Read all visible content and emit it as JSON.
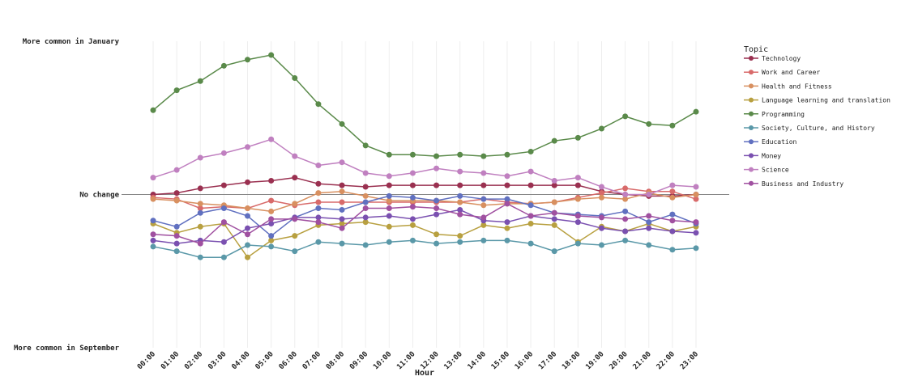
{
  "chart_data": {
    "type": "line",
    "x_label": "Hour",
    "legend_title": "Topic",
    "categories": [
      "00:00",
      "01:00",
      "02:00",
      "03:00",
      "04:00",
      "05:00",
      "06:00",
      "07:00",
      "08:00",
      "09:00",
      "10:00",
      "11:00",
      "12:00",
      "13:00",
      "14:00",
      "15:00",
      "16:00",
      "17:00",
      "18:00",
      "19:00",
      "20:00",
      "21:00",
      "22:00",
      "23:00"
    ],
    "ylim": [
      -1,
      1
    ],
    "yticks": [
      {
        "value": 1,
        "label": "More common in January"
      },
      {
        "value": 0,
        "label": "No change"
      },
      {
        "value": -1,
        "label": "More common in September"
      }
    ],
    "grid": true,
    "series": [
      {
        "name": "Technology",
        "color": "#9a3050",
        "values": [
          0,
          0.01,
          0.04,
          0.06,
          0.08,
          0.09,
          0.11,
          0.07,
          0.06,
          0.05,
          0.06,
          0.06,
          0.06,
          0.06,
          0.06,
          0.06,
          0.06,
          0.06,
          0.06,
          0.02,
          0,
          -0.01,
          -0.01,
          0
        ]
      },
      {
        "name": "Work and Career",
        "color": "#d86a6a",
        "values": [
          -0.02,
          -0.03,
          -0.09,
          -0.08,
          -0.09,
          -0.04,
          -0.07,
          -0.05,
          -0.05,
          -0.05,
          -0.05,
          -0.05,
          -0.05,
          -0.05,
          -0.03,
          -0.05,
          -0.06,
          -0.05,
          -0.02,
          0.01,
          0.04,
          0.02,
          0.02,
          -0.03
        ]
      },
      {
        "name": "Health and Fitness",
        "color": "#d89060",
        "values": [
          -0.03,
          -0.04,
          -0.06,
          -0.07,
          -0.09,
          -0.11,
          -0.06,
          0.01,
          0.02,
          -0.01,
          -0.04,
          -0.04,
          -0.04,
          -0.05,
          -0.07,
          -0.06,
          -0.06,
          -0.05,
          -0.03,
          -0.02,
          -0.03,
          0.01,
          -0.02,
          0
        ]
      },
      {
        "name": "Language learning and translation",
        "color": "#b8a040",
        "values": [
          -0.19,
          -0.25,
          -0.21,
          -0.19,
          -0.41,
          -0.3,
          -0.27,
          -0.2,
          -0.19,
          -0.18,
          -0.21,
          -0.2,
          -0.26,
          -0.27,
          -0.2,
          -0.22,
          -0.19,
          -0.2,
          -0.31,
          -0.21,
          -0.24,
          -0.19,
          -0.24,
          -0.21
        ]
      },
      {
        "name": "Programming",
        "color": "#5a8a4a",
        "values": [
          0.55,
          0.68,
          0.74,
          0.84,
          0.88,
          0.91,
          0.76,
          0.59,
          0.46,
          0.32,
          0.26,
          0.26,
          0.25,
          0.26,
          0.25,
          0.26,
          0.28,
          0.35,
          0.37,
          0.43,
          0.51,
          0.46,
          0.45,
          0.54
        ]
      },
      {
        "name": "Society, Culture, and History",
        "color": "#5a98a8",
        "values": [
          -0.34,
          -0.37,
          -0.41,
          -0.41,
          -0.33,
          -0.34,
          -0.37,
          -0.31,
          -0.32,
          -0.33,
          -0.31,
          -0.3,
          -0.32,
          -0.31,
          -0.3,
          -0.3,
          -0.32,
          -0.37,
          -0.32,
          -0.33,
          -0.3,
          -0.33,
          -0.36,
          -0.35
        ]
      },
      {
        "name": "Education",
        "color": "#6070c0",
        "values": [
          -0.17,
          -0.21,
          -0.12,
          -0.09,
          -0.14,
          -0.27,
          -0.15,
          -0.09,
          -0.1,
          -0.05,
          -0.01,
          -0.02,
          -0.04,
          -0.01,
          -0.03,
          -0.03,
          -0.07,
          -0.12,
          -0.13,
          -0.14,
          -0.11,
          -0.18,
          -0.13,
          -0.19
        ]
      },
      {
        "name": "Money",
        "color": "#7a50b0",
        "values": [
          -0.3,
          -0.32,
          -0.3,
          -0.31,
          -0.22,
          -0.19,
          -0.15,
          -0.15,
          -0.16,
          -0.15,
          -0.14,
          -0.16,
          -0.13,
          -0.1,
          -0.17,
          -0.18,
          -0.14,
          -0.16,
          -0.18,
          -0.22,
          -0.24,
          -0.22,
          -0.24,
          -0.25
        ]
      },
      {
        "name": "Science",
        "color": "#c080c0",
        "values": [
          0.11,
          0.16,
          0.24,
          0.27,
          0.31,
          0.36,
          0.25,
          0.19,
          0.21,
          0.14,
          0.12,
          0.14,
          0.17,
          0.15,
          0.14,
          0.12,
          0.15,
          0.09,
          0.11,
          0.05,
          0,
          0,
          0.06,
          0.05
        ]
      },
      {
        "name": "Business and Industry",
        "color": "#a050a0",
        "values": [
          -0.26,
          -0.27,
          -0.32,
          -0.18,
          -0.26,
          -0.16,
          -0.16,
          -0.18,
          -0.22,
          -0.09,
          -0.09,
          -0.08,
          -0.09,
          -0.13,
          -0.15,
          -0.06,
          -0.14,
          -0.12,
          -0.14,
          -0.15,
          -0.16,
          -0.14,
          -0.17,
          -0.18
        ]
      }
    ]
  }
}
